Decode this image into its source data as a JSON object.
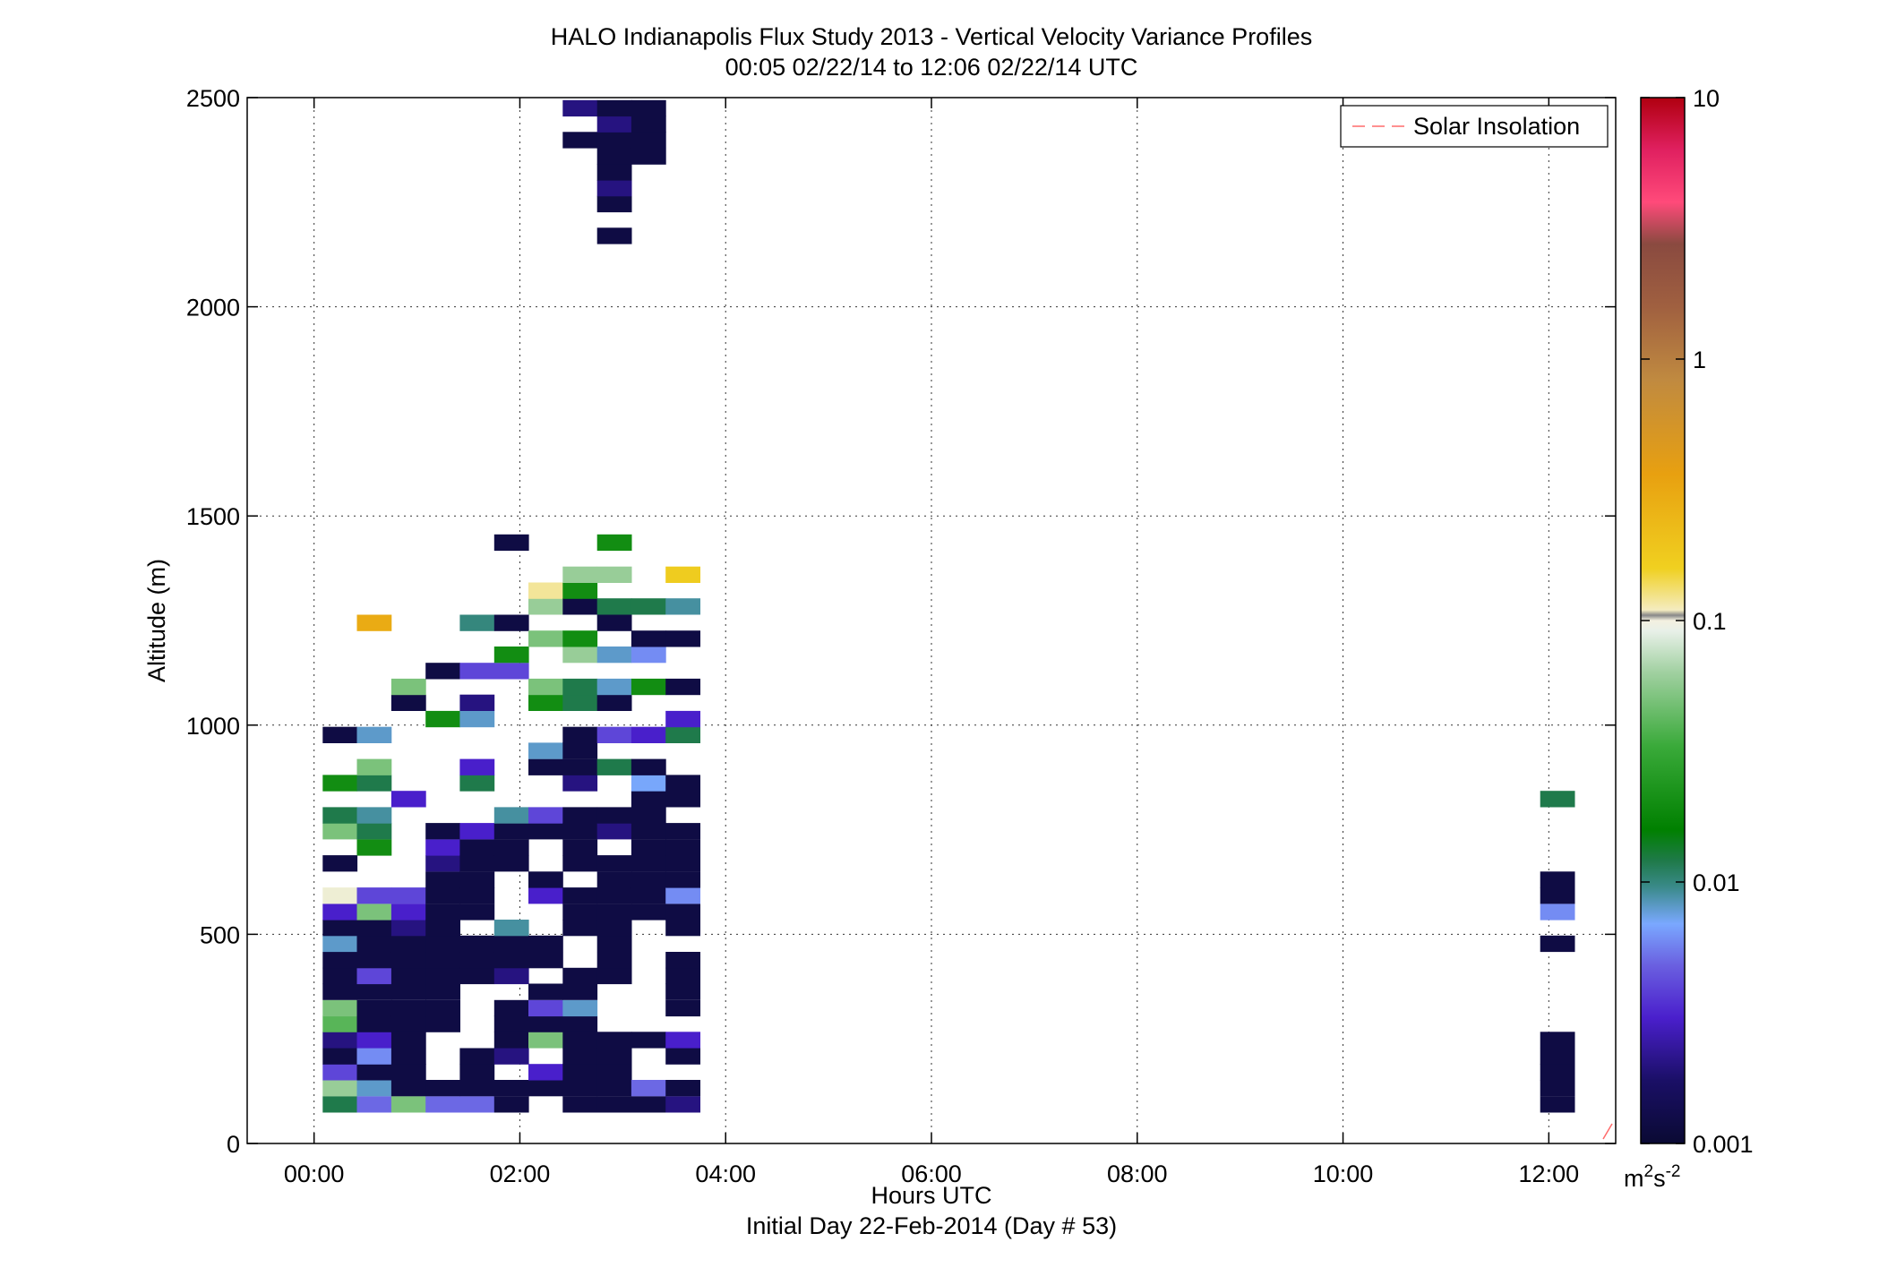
{
  "chart_data": {
    "type": "heatmap",
    "title": "HALO Indianapolis Flux Study 2013 - Vertical Velocity Variance Profiles",
    "subtitle": "00:05 02/22/14 to 12:06 02/22/14  UTC",
    "xlabel": "Hours UTC",
    "xlabel2": "Initial Day 22-Feb-2014 (Day # 53)",
    "ylabel": "Altitude (m)",
    "xlim": [
      -0.65,
      12.65
    ],
    "ylim": [
      0,
      2500
    ],
    "x_ticks": [
      0,
      2,
      4,
      6,
      8,
      10,
      12
    ],
    "x_tick_labels": [
      "00:00",
      "02:00",
      "04:00",
      "06:00",
      "08:00",
      "10:00",
      "12:00"
    ],
    "y_ticks": [
      0,
      500,
      1000,
      1500,
      2000,
      2500
    ],
    "y_tick_labels": [
      "0",
      "500",
      "1000",
      "1500",
      "2000",
      "2500"
    ],
    "grid": true,
    "legend": {
      "position": "top-right",
      "entries": [
        {
          "label": "Solar Insolation",
          "color": "#ff6b6b",
          "style": "dashed"
        }
      ]
    },
    "colorbar": {
      "scale": "log",
      "range": [
        0.001,
        10
      ],
      "tick_values": [
        0.001,
        0.01,
        0.1,
        1,
        10
      ],
      "tick_labels": [
        "0.001",
        "0.01",
        "0.1",
        "1",
        "10"
      ],
      "units_base": "m",
      "units_sup1": "2",
      "units_mid": "s",
      "units_sup2": "-2"
    },
    "cell_width_hours": 0.333,
    "cell_height_m": 38,
    "x_values_hours": [
      0.25,
      0.583,
      0.917,
      1.25,
      1.583,
      1.917,
      2.25,
      2.583,
      2.917,
      3.25,
      3.583,
      12.083
    ],
    "profiles": [
      {
        "x": 0.25,
        "cells": [
          [
            94,
            0.012
          ],
          [
            133,
            0.06
          ],
          [
            171,
            0.004
          ],
          [
            209,
            0.0012
          ],
          [
            248,
            0.002
          ],
          [
            286,
            0.04
          ],
          [
            324,
            0.05
          ],
          [
            363,
            0.0012
          ],
          [
            401,
            0.0012
          ],
          [
            439,
            0.0012
          ],
          [
            478,
            0.008
          ],
          [
            516,
            0.0012
          ],
          [
            554,
            0.003
          ],
          [
            593,
            0.1
          ],
          [
            670,
            0.0012
          ],
          [
            747,
            0.05
          ],
          [
            785,
            0.012
          ],
          [
            862,
            0.02
          ],
          [
            977,
            0.0012
          ]
        ]
      },
      {
        "x": 0.583,
        "cells": [
          [
            94,
            0.005
          ],
          [
            133,
            0.008
          ],
          [
            171,
            0.0012
          ],
          [
            209,
            0.006
          ],
          [
            248,
            0.003
          ],
          [
            286,
            0.0012
          ],
          [
            324,
            0.0012
          ],
          [
            363,
            0.0012
          ],
          [
            401,
            0.004
          ],
          [
            439,
            0.0012
          ],
          [
            478,
            0.0012
          ],
          [
            516,
            0.0012
          ],
          [
            554,
            0.05
          ],
          [
            593,
            0.004
          ],
          [
            708,
            0.02
          ],
          [
            747,
            0.012
          ],
          [
            785,
            0.009
          ],
          [
            862,
            0.012
          ],
          [
            900,
            0.05
          ],
          [
            977,
            0.008
          ],
          [
            1245,
            0.3
          ]
        ]
      },
      {
        "x": 0.917,
        "cells": [
          [
            94,
            0.05
          ],
          [
            133,
            0.0012
          ],
          [
            171,
            0.0012
          ],
          [
            209,
            0.0012
          ],
          [
            248,
            0.0012
          ],
          [
            286,
            0.0012
          ],
          [
            324,
            0.0012
          ],
          [
            363,
            0.0012
          ],
          [
            401,
            0.0012
          ],
          [
            439,
            0.0012
          ],
          [
            478,
            0.0012
          ],
          [
            516,
            0.002
          ],
          [
            554,
            0.003
          ],
          [
            593,
            0.004
          ],
          [
            824,
            0.003
          ],
          [
            1054,
            0.0012
          ],
          [
            1092,
            0.05
          ]
        ]
      },
      {
        "x": 1.25,
        "cells": [
          [
            94,
            0.005
          ],
          [
            133,
            0.0012
          ],
          [
            286,
            0.0012
          ],
          [
            324,
            0.0012
          ],
          [
            363,
            0.0012
          ],
          [
            401,
            0.0012
          ],
          [
            439,
            0.0012
          ],
          [
            478,
            0.0012
          ],
          [
            516,
            0.0012
          ],
          [
            554,
            0.0012
          ],
          [
            593,
            0.0012
          ],
          [
            631,
            0.0012
          ],
          [
            670,
            0.002
          ],
          [
            708,
            0.003
          ],
          [
            747,
            0.0012
          ],
          [
            1015,
            0.02
          ],
          [
            1130,
            0.0012
          ]
        ]
      },
      {
        "x": 1.583,
        "cells": [
          [
            94,
            0.005
          ],
          [
            133,
            0.0012
          ],
          [
            171,
            0.0012
          ],
          [
            209,
            0.0012
          ],
          [
            401,
            0.0012
          ],
          [
            439,
            0.0012
          ],
          [
            478,
            0.0012
          ],
          [
            554,
            0.0012
          ],
          [
            593,
            0.0012
          ],
          [
            631,
            0.0012
          ],
          [
            670,
            0.0012
          ],
          [
            708,
            0.0012
          ],
          [
            747,
            0.003
          ],
          [
            862,
            0.012
          ],
          [
            900,
            0.003
          ],
          [
            1015,
            0.008
          ],
          [
            1054,
            0.002
          ],
          [
            1130,
            0.004
          ],
          [
            1245,
            0.01
          ]
        ]
      },
      {
        "x": 1.917,
        "cells": [
          [
            94,
            0.0012
          ],
          [
            133,
            0.0012
          ],
          [
            209,
            0.002
          ],
          [
            248,
            0.0012
          ],
          [
            286,
            0.0012
          ],
          [
            324,
            0.0012
          ],
          [
            401,
            0.002
          ],
          [
            439,
            0.0012
          ],
          [
            478,
            0.0012
          ],
          [
            516,
            0.009
          ],
          [
            670,
            0.0012
          ],
          [
            708,
            0.0012
          ],
          [
            747,
            0.0012
          ],
          [
            785,
            0.009
          ],
          [
            1130,
            0.004
          ],
          [
            1169,
            0.02
          ],
          [
            1245,
            0.0012
          ],
          [
            1437,
            0.0012
          ]
        ]
      },
      {
        "x": 2.25,
        "cells": [
          [
            133,
            0.0012
          ],
          [
            171,
            0.003
          ],
          [
            248,
            0.05
          ],
          [
            286,
            0.0012
          ],
          [
            324,
            0.004
          ],
          [
            363,
            0.0012
          ],
          [
            439,
            0.0012
          ],
          [
            478,
            0.0012
          ],
          [
            593,
            0.003
          ],
          [
            631,
            0.0012
          ],
          [
            747,
            0.0012
          ],
          [
            785,
            0.004
          ],
          [
            900,
            0.0012
          ],
          [
            939,
            0.008
          ],
          [
            1054,
            0.02
          ],
          [
            1092,
            0.05
          ],
          [
            1207,
            0.05
          ],
          [
            1284,
            0.06
          ],
          [
            1322,
            0.12
          ]
        ]
      },
      {
        "x": 2.583,
        "cells": [
          [
            94,
            0.0012
          ],
          [
            133,
            0.0012
          ],
          [
            171,
            0.0012
          ],
          [
            209,
            0.0012
          ],
          [
            248,
            0.0012
          ],
          [
            286,
            0.0012
          ],
          [
            324,
            0.008
          ],
          [
            363,
            0.0012
          ],
          [
            401,
            0.0012
          ],
          [
            516,
            0.0012
          ],
          [
            554,
            0.0012
          ],
          [
            593,
            0.0012
          ],
          [
            670,
            0.0012
          ],
          [
            708,
            0.0012
          ],
          [
            747,
            0.0012
          ],
          [
            785,
            0.0012
          ],
          [
            862,
            0.002
          ],
          [
            900,
            0.0012
          ],
          [
            939,
            0.0012
          ],
          [
            977,
            0.0012
          ],
          [
            1054,
            0.012
          ],
          [
            1092,
            0.012
          ],
          [
            1169,
            0.06
          ],
          [
            1207,
            0.02
          ],
          [
            1284,
            0.0012
          ],
          [
            1322,
            0.02
          ],
          [
            1360,
            0.06
          ],
          [
            2399,
            0.0012
          ],
          [
            2475,
            0.002
          ]
        ]
      },
      {
        "x": 2.917,
        "cells": [
          [
            94,
            0.0012
          ],
          [
            133,
            0.0012
          ],
          [
            171,
            0.0012
          ],
          [
            209,
            0.0012
          ],
          [
            248,
            0.0012
          ],
          [
            401,
            0.0012
          ],
          [
            439,
            0.0012
          ],
          [
            478,
            0.0012
          ],
          [
            516,
            0.0012
          ],
          [
            554,
            0.0012
          ],
          [
            593,
            0.0012
          ],
          [
            631,
            0.0012
          ],
          [
            670,
            0.0012
          ],
          [
            747,
            0.002
          ],
          [
            785,
            0.0012
          ],
          [
            900,
            0.012
          ],
          [
            977,
            0.004
          ],
          [
            1054,
            0.0012
          ],
          [
            1092,
            0.008
          ],
          [
            1169,
            0.008
          ],
          [
            1245,
            0.0012
          ],
          [
            1284,
            0.012
          ],
          [
            1360,
            0.06
          ],
          [
            1437,
            0.02
          ],
          [
            2170,
            0.0012
          ],
          [
            2246,
            0.0012
          ],
          [
            2284,
            0.002
          ],
          [
            2322,
            0.0012
          ],
          [
            2360,
            0.0012
          ],
          [
            2399,
            0.0012
          ],
          [
            2437,
            0.002
          ],
          [
            2475,
            0.0012
          ]
        ]
      },
      {
        "x": 3.25,
        "cells": [
          [
            94,
            0.0012
          ],
          [
            133,
            0.005
          ],
          [
            248,
            0.0012
          ],
          [
            554,
            0.0012
          ],
          [
            593,
            0.0012
          ],
          [
            631,
            0.0012
          ],
          [
            670,
            0.0012
          ],
          [
            708,
            0.0012
          ],
          [
            747,
            0.0012
          ],
          [
            785,
            0.0012
          ],
          [
            824,
            0.0012
          ],
          [
            862,
            0.007
          ],
          [
            900,
            0.0012
          ],
          [
            977,
            0.003
          ],
          [
            1092,
            0.02
          ],
          [
            1169,
            0.006
          ],
          [
            1207,
            0.0012
          ],
          [
            1284,
            0.012
          ],
          [
            2360,
            0.0012
          ],
          [
            2399,
            0.0012
          ],
          [
            2437,
            0.0012
          ],
          [
            2475,
            0.0012
          ]
        ]
      },
      {
        "x": 3.583,
        "cells": [
          [
            94,
            0.002
          ],
          [
            133,
            0.0012
          ],
          [
            209,
            0.0012
          ],
          [
            248,
            0.003
          ],
          [
            324,
            0.0012
          ],
          [
            363,
            0.0012
          ],
          [
            401,
            0.0012
          ],
          [
            439,
            0.0012
          ],
          [
            516,
            0.0012
          ],
          [
            554,
            0.0012
          ],
          [
            593,
            0.006
          ],
          [
            631,
            0.0012
          ],
          [
            670,
            0.0012
          ],
          [
            708,
            0.0012
          ],
          [
            747,
            0.0012
          ],
          [
            824,
            0.0012
          ],
          [
            862,
            0.0012
          ],
          [
            977,
            0.012
          ],
          [
            1015,
            0.003
          ],
          [
            1092,
            0.0012
          ],
          [
            1207,
            0.0012
          ],
          [
            1284,
            0.009
          ],
          [
            1360,
            0.17
          ]
        ]
      },
      {
        "x": 12.083,
        "cells": [
          [
            94,
            0.0012
          ],
          [
            133,
            0.0012
          ],
          [
            171,
            0.0012
          ],
          [
            209,
            0.0012
          ],
          [
            248,
            0.0012
          ],
          [
            478,
            0.0012
          ],
          [
            554,
            0.006
          ],
          [
            593,
            0.0012
          ],
          [
            631,
            0.0012
          ],
          [
            824,
            0.012
          ]
        ]
      }
    ]
  }
}
